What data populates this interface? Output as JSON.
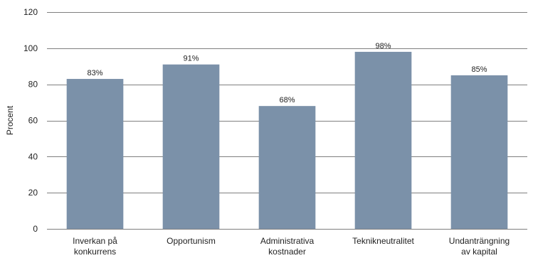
{
  "chart_data": {
    "type": "bar",
    "categories": [
      [
        "Inverkan på",
        "konkurrens"
      ],
      [
        "Opportunism"
      ],
      [
        "Administrativa",
        "kostnader"
      ],
      [
        "Teknikneutralitet"
      ],
      [
        "Undanträngning",
        "av kapital"
      ]
    ],
    "values": [
      83,
      91,
      68,
      98,
      85
    ],
    "data_labels": [
      "83%",
      "91%",
      "68%",
      "98%",
      "85%"
    ],
    "ylabel": "Procent",
    "ylim": [
      0,
      120
    ],
    "yticks": [
      0,
      20,
      40,
      60,
      80,
      100,
      120
    ],
    "grid": true,
    "legend": "none",
    "bar_color": "#7b91a9"
  }
}
